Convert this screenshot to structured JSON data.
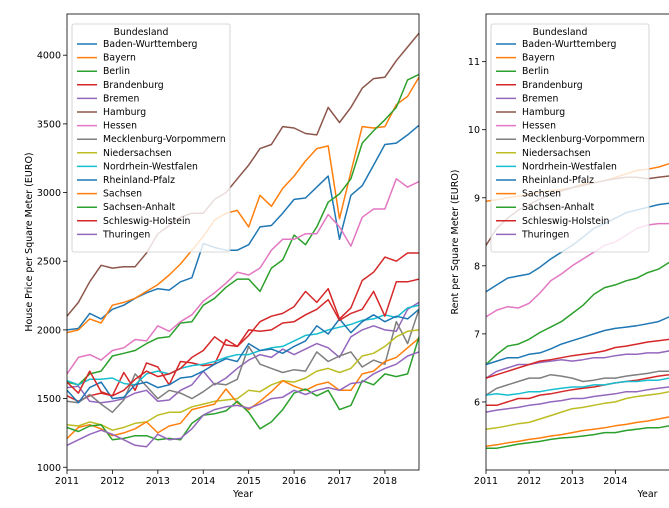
{
  "palette": {
    "Baden-Wurttemberg": "#1f77b4",
    "Bayern": "#ff7f0e",
    "Berlin": "#2ca02c",
    "Brandenburg": "#d62728",
    "Bremen": "#9467bd",
    "Hamburg": "#8c564b",
    "Hessen": "#e377c2",
    "Mecklenburg-Vorpommern": "#7f7f7f",
    "Niedersachsen": "#bcbd22",
    "Nordrhein-Westfalen": "#17becf",
    "Rheinland-Pfalz": "#1f77b4",
    "Sachsen": "#ff7f0e",
    "Sachsen-Anhalt": "#2ca02c",
    "Schleswig-Holstein": "#d62728",
    "Thuringen": "#9467bd"
  },
  "chart_data": [
    {
      "type": "line",
      "xlabel": "Year",
      "ylabel": "House Price per Square Meter (EURO)",
      "xlim": [
        2011,
        2018.75
      ],
      "ylim": [
        980,
        4300
      ],
      "xticks": [
        2011,
        2012,
        2013,
        2014,
        2015,
        2016,
        2017,
        2018
      ],
      "yticks": [
        1000,
        1500,
        2000,
        2500,
        3000,
        3500,
        4000
      ],
      "legend_title": "Bundesland",
      "legend_loc": "upper-left",
      "x": [
        2011.0,
        2011.25,
        2011.5,
        2011.75,
        2012.0,
        2012.25,
        2012.5,
        2012.75,
        2013.0,
        2013.25,
        2013.5,
        2013.75,
        2014.0,
        2014.25,
        2014.5,
        2014.75,
        2015.0,
        2015.25,
        2015.5,
        2015.75,
        2016.0,
        2016.25,
        2016.5,
        2016.75,
        2017.0,
        2017.25,
        2017.5,
        2017.75,
        2018.0,
        2018.25,
        2018.5,
        2018.75
      ],
      "series": [
        {
          "name": "Baden-Wurttemberg",
          "values": [
            2000,
            2010,
            2120,
            2080,
            2150,
            2180,
            2230,
            2270,
            2300,
            2290,
            2350,
            2380,
            2630,
            2600,
            2580,
            2580,
            2620,
            2750,
            2760,
            2850,
            2950,
            2960,
            3040,
            3120,
            2660,
            2980,
            3050,
            3200,
            3350,
            3360,
            3420,
            3490
          ]
        },
        {
          "name": "Bayern",
          "values": [
            1980,
            2000,
            2080,
            2050,
            2180,
            2200,
            2230,
            2280,
            2330,
            2400,
            2480,
            2580,
            2680,
            2800,
            2850,
            2870,
            2750,
            2980,
            2900,
            3030,
            3120,
            3230,
            3320,
            3340,
            2810,
            3150,
            3480,
            3470,
            3480,
            3640,
            3700,
            3840
          ]
        },
        {
          "name": "Berlin",
          "values": [
            1620,
            1600,
            1680,
            1700,
            1810,
            1830,
            1850,
            1900,
            1940,
            1950,
            2050,
            2060,
            2180,
            2230,
            2310,
            2370,
            2370,
            2280,
            2450,
            2510,
            2690,
            2620,
            2750,
            2930,
            2990,
            3100,
            3360,
            3450,
            3530,
            3620,
            3820,
            3860
          ]
        },
        {
          "name": "Brandenburg",
          "values": [
            1520,
            1480,
            1520,
            1540,
            1520,
            1690,
            1560,
            1760,
            1730,
            1600,
            1770,
            1760,
            1740,
            1750,
            1930,
            1880,
            1960,
            2060,
            2100,
            2120,
            2170,
            2280,
            2200,
            2300,
            2080,
            2160,
            2360,
            2420,
            2530,
            2500,
            2560,
            2560
          ]
        },
        {
          "name": "Bremen",
          "values": [
            1580,
            1590,
            1480,
            1470,
            1480,
            1500,
            1540,
            1560,
            1480,
            1490,
            1560,
            1600,
            1700,
            1600,
            1650,
            1720,
            1780,
            1820,
            1800,
            1860,
            1820,
            1860,
            1900,
            1870,
            1800,
            1950,
            2000,
            2030,
            2000,
            1990,
            2150,
            2200
          ]
        },
        {
          "name": "Hamburg",
          "values": [
            2100,
            2200,
            2350,
            2470,
            2450,
            2460,
            2460,
            2560,
            2700,
            2760,
            2820,
            2850,
            2850,
            2950,
            3000,
            3100,
            3200,
            3320,
            3350,
            3480,
            3470,
            3430,
            3420,
            3620,
            3510,
            3620,
            3760,
            3830,
            3840,
            3960,
            4060,
            4160
          ]
        },
        {
          "name": "Hessen",
          "values": [
            1680,
            1800,
            1820,
            1780,
            1850,
            1870,
            1930,
            1920,
            2030,
            1990,
            2060,
            2110,
            2210,
            2270,
            2340,
            2420,
            2400,
            2450,
            2580,
            2660,
            2660,
            2700,
            2700,
            2840,
            2750,
            2610,
            2820,
            2880,
            2880,
            3100,
            3040,
            3080
          ]
        },
        {
          "name": "Mecklenburg-Vorpommern",
          "values": [
            1480,
            1470,
            1530,
            1460,
            1400,
            1490,
            1680,
            1590,
            1500,
            1560,
            1540,
            1500,
            1550,
            1610,
            1600,
            1640,
            1880,
            1750,
            1720,
            1690,
            1710,
            1700,
            1840,
            1770,
            1810,
            1840,
            1730,
            1780,
            1750,
            2060,
            1900,
            2150
          ]
        },
        {
          "name": "Niedersachsen",
          "values": [
            1310,
            1300,
            1330,
            1310,
            1270,
            1290,
            1320,
            1330,
            1380,
            1400,
            1400,
            1440,
            1460,
            1480,
            1490,
            1500,
            1560,
            1550,
            1600,
            1630,
            1620,
            1650,
            1700,
            1720,
            1690,
            1720,
            1810,
            1830,
            1880,
            1950,
            1990,
            2000
          ]
        },
        {
          "name": "Nordrhein-Westfalen",
          "values": [
            1630,
            1600,
            1640,
            1640,
            1650,
            1610,
            1600,
            1680,
            1700,
            1680,
            1720,
            1740,
            1750,
            1770,
            1800,
            1820,
            1820,
            1850,
            1870,
            1880,
            1920,
            1960,
            1970,
            2000,
            2020,
            2040,
            2070,
            2080,
            2110,
            2090,
            2160,
            2180
          ]
        },
        {
          "name": "Rheinland-Pfalz",
          "values": [
            1560,
            1470,
            1580,
            1620,
            1500,
            1510,
            1600,
            1620,
            1580,
            1600,
            1650,
            1660,
            1700,
            1750,
            1790,
            1770,
            1900,
            1850,
            1860,
            1830,
            1880,
            1920,
            2030,
            1970,
            2080,
            1980,
            2060,
            2110,
            2060,
            2100,
            2080,
            2150
          ]
        },
        {
          "name": "Sachsen",
          "values": [
            1210,
            1290,
            1310,
            1280,
            1230,
            1250,
            1280,
            1330,
            1250,
            1300,
            1320,
            1420,
            1440,
            1460,
            1570,
            1470,
            1420,
            1480,
            1550,
            1630,
            1590,
            1560,
            1600,
            1620,
            1560,
            1560,
            1680,
            1700,
            1770,
            1800,
            1870,
            1940
          ]
        },
        {
          "name": "Sachsen-Anhalt",
          "values": [
            1290,
            1260,
            1300,
            1310,
            1200,
            1210,
            1230,
            1230,
            1200,
            1210,
            1200,
            1320,
            1380,
            1390,
            1410,
            1480,
            1400,
            1280,
            1330,
            1420,
            1540,
            1570,
            1520,
            1560,
            1420,
            1450,
            1630,
            1600,
            1680,
            1660,
            1680,
            1950
          ]
        },
        {
          "name": "Schleswig-Holstein",
          "values": [
            1620,
            1540,
            1700,
            1550,
            1520,
            1560,
            1640,
            1700,
            1660,
            1680,
            1720,
            1800,
            1850,
            1950,
            1890,
            1880,
            2000,
            1990,
            2000,
            2050,
            2060,
            2110,
            2150,
            2220,
            2070,
            2120,
            2150,
            2280,
            2100,
            2350,
            2350,
            2370
          ]
        },
        {
          "name": "Thuringen",
          "values": [
            1160,
            1200,
            1240,
            1270,
            1240,
            1200,
            1160,
            1150,
            1240,
            1200,
            1210,
            1280,
            1380,
            1420,
            1440,
            1450,
            1430,
            1460,
            1500,
            1510,
            1560,
            1530,
            1560,
            1580,
            1560,
            1610,
            1620,
            1680,
            1720,
            1750,
            1810,
            1840
          ]
        }
      ]
    },
    {
      "type": "line",
      "xlabel": "Year",
      "ylabel": "Rent per Square Meter (EURO)",
      "xlim": [
        2011,
        2015.5
      ],
      "ylim": [
        5.0,
        11.7
      ],
      "xticks": [
        2011,
        2012,
        2013,
        2014
      ],
      "yticks": [
        6,
        7,
        8,
        9,
        10,
        11
      ],
      "legend_title": "Bundesland",
      "legend_loc": "upper-left",
      "x": [
        2011.0,
        2011.25,
        2011.5,
        2011.75,
        2012.0,
        2012.25,
        2012.5,
        2012.75,
        2013.0,
        2013.25,
        2013.5,
        2013.75,
        2014.0,
        2014.25,
        2014.5,
        2014.75,
        2015.0,
        2015.25,
        2015.5
      ],
      "series": [
        {
          "name": "Baden-Wurttemberg",
          "values": [
            7.62,
            7.72,
            7.82,
            7.85,
            7.88,
            7.98,
            8.1,
            8.2,
            8.3,
            8.42,
            8.55,
            8.62,
            8.7,
            8.78,
            8.82,
            8.86,
            8.9,
            8.92,
            9.0
          ]
        },
        {
          "name": "Bayern",
          "values": [
            8.95,
            8.97,
            9.0,
            9.02,
            9.05,
            9.08,
            9.1,
            9.12,
            9.15,
            9.2,
            9.22,
            9.25,
            9.3,
            9.35,
            9.4,
            9.42,
            9.45,
            9.5,
            9.55
          ]
        },
        {
          "name": "Berlin",
          "values": [
            6.55,
            6.7,
            6.82,
            6.85,
            6.92,
            7.02,
            7.1,
            7.18,
            7.3,
            7.42,
            7.58,
            7.68,
            7.72,
            7.78,
            7.82,
            7.9,
            7.95,
            8.05,
            8.2
          ]
        },
        {
          "name": "Brandenburg",
          "values": [
            5.95,
            5.95,
            6.0,
            6.05,
            6.05,
            6.1,
            6.12,
            6.15,
            6.18,
            6.2,
            6.22,
            6.25,
            6.28,
            6.3,
            6.32,
            6.35,
            6.38,
            6.4,
            6.42
          ]
        },
        {
          "name": "Bremen",
          "values": [
            6.35,
            6.45,
            6.5,
            6.55,
            6.55,
            6.58,
            6.6,
            6.62,
            6.6,
            6.62,
            6.65,
            6.65,
            6.68,
            6.7,
            6.7,
            6.72,
            6.72,
            6.75,
            6.75
          ]
        },
        {
          "name": "Hamburg",
          "values": [
            8.3,
            8.55,
            8.7,
            8.82,
            8.9,
            8.98,
            9.05,
            9.1,
            9.15,
            9.18,
            9.22,
            9.25,
            9.28,
            9.3,
            9.3,
            9.28,
            9.3,
            9.32,
            9.35
          ]
        },
        {
          "name": "Hessen",
          "values": [
            7.25,
            7.35,
            7.4,
            7.38,
            7.45,
            7.6,
            7.78,
            7.88,
            8.0,
            8.1,
            8.2,
            8.3,
            8.35,
            8.45,
            8.55,
            8.6,
            8.62,
            8.62,
            8.65
          ]
        },
        {
          "name": "Mecklenburg-Vorpommern",
          "values": [
            6.1,
            6.2,
            6.25,
            6.3,
            6.35,
            6.35,
            6.4,
            6.38,
            6.35,
            6.3,
            6.32,
            6.35,
            6.35,
            6.38,
            6.4,
            6.42,
            6.45,
            6.45,
            6.5
          ]
        },
        {
          "name": "Niedersachsen",
          "values": [
            5.6,
            5.62,
            5.65,
            5.68,
            5.7,
            5.75,
            5.8,
            5.85,
            5.9,
            5.92,
            5.95,
            5.98,
            6.0,
            6.05,
            6.08,
            6.1,
            6.12,
            6.15,
            6.2
          ]
        },
        {
          "name": "Nordrhein-Westfalen",
          "values": [
            6.1,
            6.12,
            6.1,
            6.12,
            6.15,
            6.15,
            6.18,
            6.2,
            6.22,
            6.22,
            6.25,
            6.25,
            6.28,
            6.3,
            6.3,
            6.32,
            6.32,
            6.35,
            6.38
          ]
        },
        {
          "name": "Rheinland-Pfalz",
          "values": [
            6.55,
            6.6,
            6.65,
            6.65,
            6.7,
            6.72,
            6.78,
            6.85,
            6.9,
            6.95,
            7.0,
            7.05,
            7.08,
            7.1,
            7.12,
            7.15,
            7.18,
            7.25,
            7.35
          ]
        },
        {
          "name": "Sachsen",
          "values": [
            5.35,
            5.37,
            5.4,
            5.42,
            5.45,
            5.47,
            5.5,
            5.52,
            5.55,
            5.58,
            5.6,
            5.62,
            5.65,
            5.67,
            5.7,
            5.72,
            5.75,
            5.78,
            5.8
          ]
        },
        {
          "name": "Sachsen-Anhalt",
          "values": [
            5.32,
            5.32,
            5.35,
            5.38,
            5.4,
            5.42,
            5.45,
            5.47,
            5.48,
            5.5,
            5.52,
            5.55,
            5.55,
            5.58,
            5.6,
            5.62,
            5.62,
            5.65,
            5.68
          ]
        },
        {
          "name": "Schleswig-Holstein",
          "values": [
            6.35,
            6.4,
            6.45,
            6.5,
            6.55,
            6.6,
            6.62,
            6.65,
            6.68,
            6.7,
            6.72,
            6.75,
            6.8,
            6.82,
            6.85,
            6.88,
            6.9,
            6.92,
            6.95
          ]
        },
        {
          "name": "Thuringen",
          "values": [
            5.85,
            5.88,
            5.9,
            5.92,
            5.95,
            5.97,
            6.0,
            6.02,
            6.05,
            6.05,
            6.08,
            6.1,
            6.12,
            6.15,
            6.15,
            6.18,
            6.2,
            6.22,
            6.25
          ]
        }
      ]
    }
  ]
}
